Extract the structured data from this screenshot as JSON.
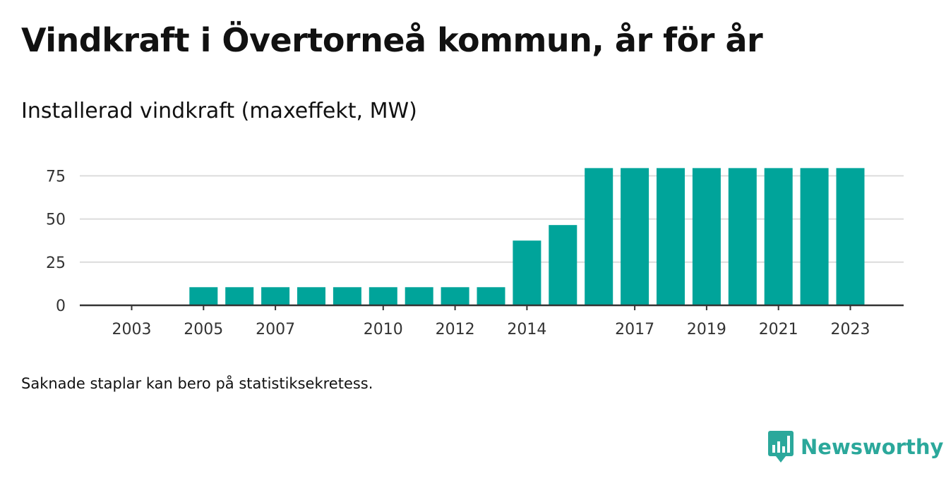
{
  "header": {
    "title": "Vindkraft i Övertorneå kommun, år för år",
    "subtitle": "Installerad vindkraft (maxeffekt, MW)"
  },
  "footer": {
    "note": "Saknade staplar kan bero på statistiksekretess.",
    "brand": "Newsworthy",
    "brand_icon": "bar-chart-speech-bubble-icon"
  },
  "colors": {
    "bar": "#00a49a",
    "grid": "#dcdcdc",
    "axis": "#333333",
    "brand": "#2ba89b"
  },
  "chart_data": {
    "type": "bar",
    "title": "Vindkraft i Övertorneå kommun, år för år",
    "subtitle": "Installerad vindkraft (maxeffekt, MW)",
    "categories": [
      "2003",
      "2004",
      "2005",
      "2006",
      "2007",
      "2008",
      "2009",
      "2010",
      "2011",
      "2012",
      "2013",
      "2014",
      "2015",
      "2016",
      "2017",
      "2018",
      "2019",
      "2020",
      "2021",
      "2022",
      "2023"
    ],
    "values": [
      null,
      null,
      10.5,
      10.5,
      10.5,
      10.5,
      10.5,
      10.5,
      10.5,
      10.5,
      10.5,
      37.5,
      46.5,
      79.5,
      79.5,
      79.5,
      79.5,
      79.5,
      79.5,
      79.5,
      79.5
    ],
    "x_tick_labels": [
      "2003",
      "2005",
      "2007",
      "2010",
      "2012",
      "2014",
      "2017",
      "2019",
      "2021",
      "2023"
    ],
    "y_ticks": [
      0,
      25,
      50,
      75
    ],
    "ylim": [
      0,
      85
    ],
    "xlabel": "",
    "ylabel": "",
    "grid": true,
    "legend": "none"
  }
}
